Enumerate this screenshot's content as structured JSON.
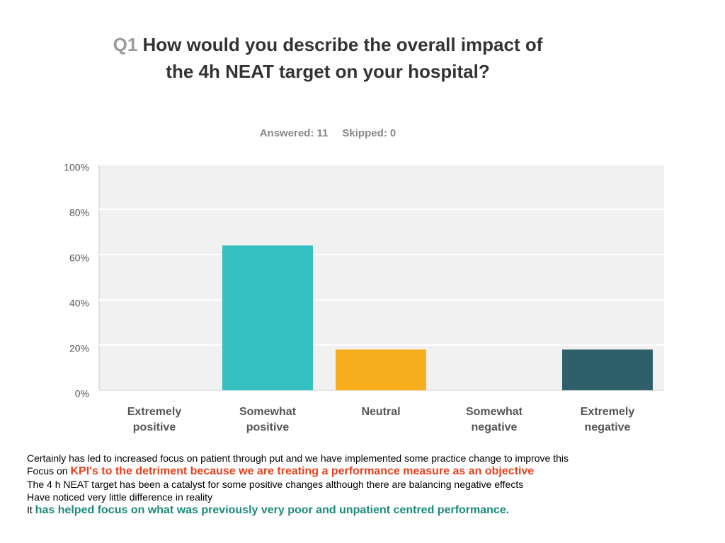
{
  "chart_data": {
    "type": "bar",
    "title_prefix": "Q1",
    "title": "How would you describe the overall impact of the 4h NEAT target on your hospital?",
    "answered": "Answered: 11",
    "skipped": "Skipped: 0",
    "categories": [
      "Extremely positive",
      "Somewhat positive",
      "Neutral",
      "Somewhat negative",
      "Extremely negative"
    ],
    "values": [
      0,
      64,
      18,
      0,
      18
    ],
    "colors": [
      "#35bfc0",
      "#35bfc0",
      "#f6ae1e",
      "#3a8f9a",
      "#2e5f6b"
    ],
    "ylim": [
      0,
      100
    ],
    "yticks": [
      {
        "value": 0,
        "label": "0%"
      },
      {
        "value": 20,
        "label": "20%"
      },
      {
        "value": 40,
        "label": "40%"
      },
      {
        "value": 60,
        "label": "60%"
      },
      {
        "value": 80,
        "label": "80%"
      },
      {
        "value": 100,
        "label": "100%"
      }
    ],
    "grid": true
  },
  "comments": [
    [
      "Certainly has led to increased focus on patient through put and we have implemented some practice change to improve this"
    ],
    [
      "Focus on ",
      "KPI's to the detriment because we are treating a performance measure as an objective"
    ],
    [
      "The 4 h NEAT target has been a catalyst for some positive changes although there are balancing negative effects"
    ],
    [
      "Have noticed very little difference in reality"
    ],
    [
      "It ",
      "has helped focus on what was previously very poor and unpatient centred performance."
    ]
  ]
}
